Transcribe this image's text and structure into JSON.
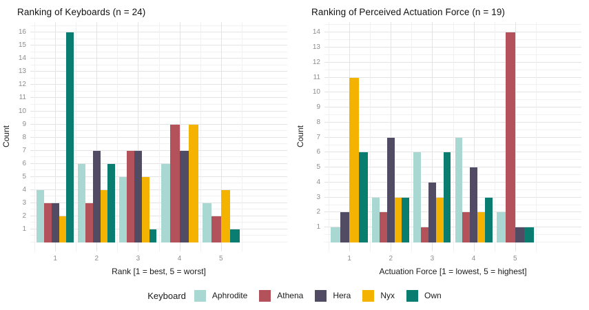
{
  "figure": {
    "legend": {
      "title": "Keyboard",
      "position": "bottom",
      "entries": [
        {
          "label": "Aphrodite",
          "color": "#A9D7D2"
        },
        {
          "label": "Athena",
          "color": "#B4525C"
        },
        {
          "label": "Hera",
          "color": "#514B63"
        },
        {
          "label": "Nyx",
          "color": "#F5B301"
        },
        {
          "label": "Own",
          "color": "#087D70"
        }
      ]
    }
  },
  "chart_data": [
    {
      "type": "bar",
      "title": "Ranking of Keyboards (n = 24)",
      "xlabel": "Rank [1 = best, 5 = worst]",
      "ylabel": "Count",
      "categories": [
        "1",
        "2",
        "3",
        "4",
        "5"
      ],
      "ylim": [
        0,
        16
      ],
      "yticks": [
        1,
        2,
        3,
        4,
        5,
        6,
        7,
        8,
        9,
        10,
        11,
        12,
        13,
        14,
        15,
        16
      ],
      "grid": true,
      "legend_position": "bottom",
      "series": [
        {
          "name": "Aphrodite",
          "color": "#A9D7D2",
          "values": [
            4,
            6,
            5,
            6,
            3
          ]
        },
        {
          "name": "Athena",
          "color": "#B4525C",
          "values": [
            3,
            3,
            7,
            9,
            2
          ]
        },
        {
          "name": "Hera",
          "color": "#514B63",
          "values": [
            3,
            7,
            7,
            7,
            0
          ]
        },
        {
          "name": "Nyx",
          "color": "#F5B301",
          "values": [
            2,
            4,
            5,
            9,
            4
          ]
        },
        {
          "name": "Own",
          "color": "#087D70",
          "values": [
            16,
            6,
            1,
            0,
            1
          ]
        }
      ]
    },
    {
      "type": "bar",
      "title": "Ranking of Perceived Actuation Force (n = 19)",
      "xlabel": "Actuation Force [1 = lowest, 5 = highest]",
      "ylabel": "Count",
      "categories": [
        "1",
        "2",
        "3",
        "4",
        "5"
      ],
      "ylim": [
        0,
        14
      ],
      "yticks": [
        1,
        2,
        3,
        4,
        5,
        6,
        7,
        8,
        9,
        10,
        11,
        12,
        13,
        14
      ],
      "grid": true,
      "legend_position": "bottom",
      "series": [
        {
          "name": "Aphrodite",
          "color": "#A9D7D2",
          "values": [
            1,
            3,
            6,
            7,
            2
          ]
        },
        {
          "name": "Athena",
          "color": "#B4525C",
          "values": [
            0,
            2,
            1,
            2,
            14
          ]
        },
        {
          "name": "Hera",
          "color": "#514B63",
          "values": [
            2,
            7,
            4,
            5,
            1
          ]
        },
        {
          "name": "Nyx",
          "color": "#F5B301",
          "values": [
            11,
            3,
            3,
            2,
            0
          ]
        },
        {
          "name": "Own",
          "color": "#087D70",
          "values": [
            6,
            3,
            6,
            3,
            1
          ]
        }
      ]
    }
  ]
}
